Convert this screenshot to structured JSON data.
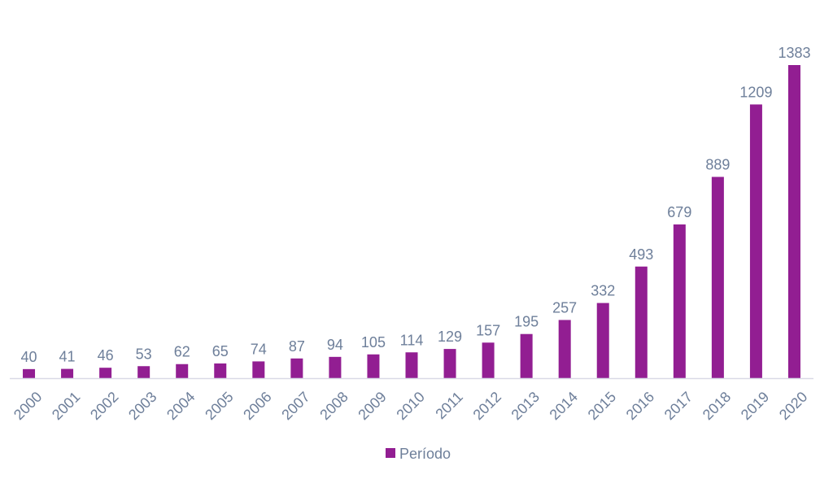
{
  "colors": {
    "bar": "#921e92",
    "text": "#6e7f9a",
    "axis": "#d9d9e6"
  },
  "chart_data": {
    "type": "bar",
    "categories": [
      "2000",
      "2001",
      "2002",
      "2003",
      "2004",
      "2005",
      "2006",
      "2007",
      "2008",
      "2009",
      "2010",
      "2011",
      "2012",
      "2013",
      "2014",
      "2015",
      "2016",
      "2017",
      "2018",
      "2019",
      "2020"
    ],
    "series": [
      {
        "name": "Período",
        "values": [
          40,
          41,
          46,
          53,
          62,
          65,
          74,
          87,
          94,
          105,
          114,
          129,
          157,
          195,
          257,
          332,
          493,
          679,
          889,
          1209,
          1383
        ]
      }
    ],
    "ylim": [
      0,
      1383
    ],
    "grid": false,
    "data_labels": true,
    "legend_position": "bottom"
  }
}
